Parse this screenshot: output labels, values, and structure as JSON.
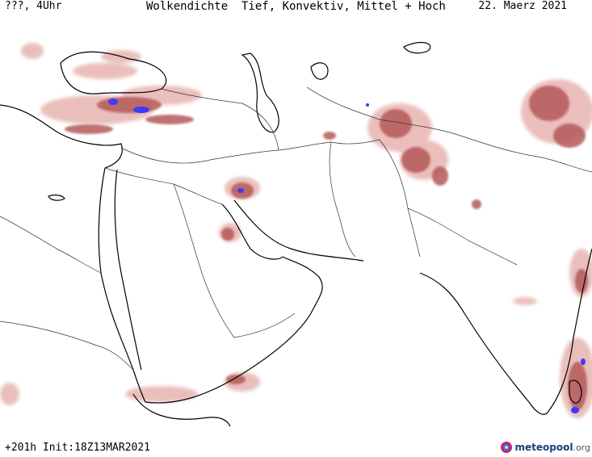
{
  "header": {
    "left": "???, 4Uhr",
    "center": "Wolkendichte  Tief, Konvektiv, Mittel + Hoch",
    "right": "22. Maerz 2021"
  },
  "footer": {
    "run": "+201h Init:18Z13MAR2021",
    "logo_main": "meteopool",
    "logo_suffix": ".org"
  },
  "colors": {
    "cloud_low": "#e8b8b4",
    "cloud_mid": "#b55a5a",
    "cloud_high": "#7a2c2c",
    "convective": "#3a3aff",
    "coastline": "#000000",
    "border": "#333333"
  },
  "icons": [
    "meteopool-logo-icon"
  ]
}
